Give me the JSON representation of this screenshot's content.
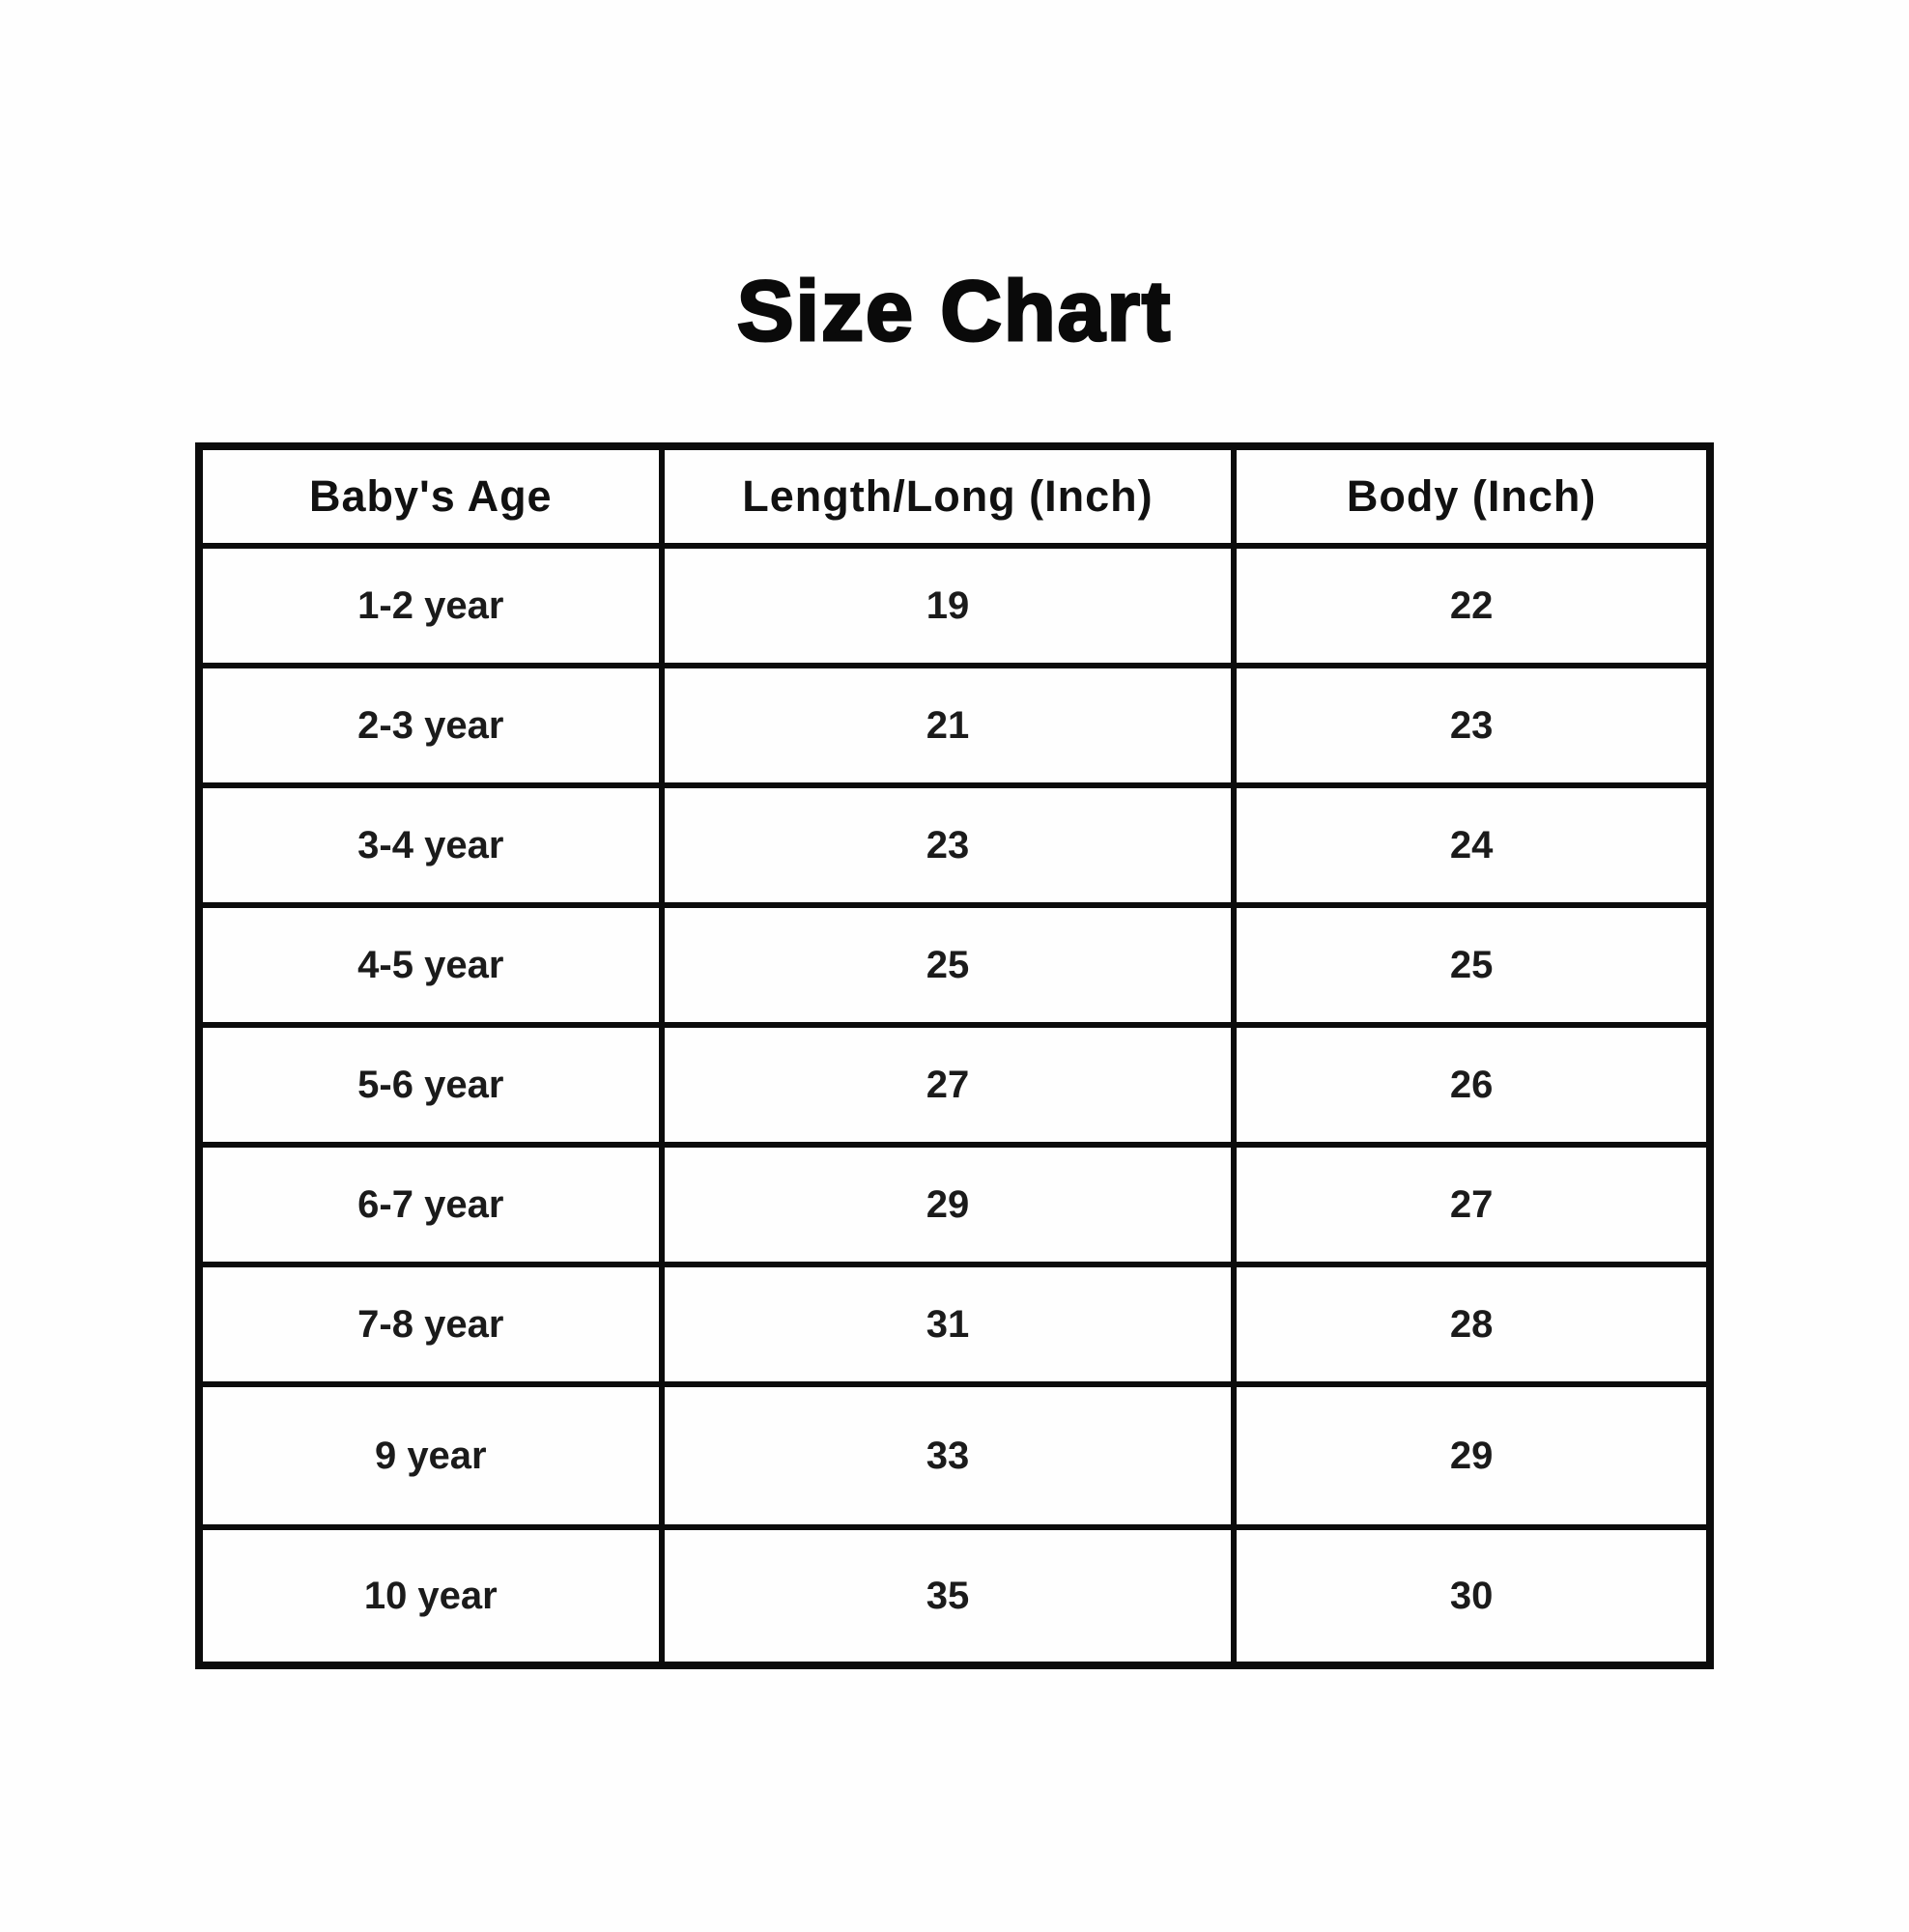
{
  "title": "Size Chart",
  "colors": {
    "background": "#ffffff",
    "text": "#1b1b1b",
    "border": "#0c0c0c"
  },
  "chart_data": {
    "type": "table",
    "title": "Size Chart",
    "columns": [
      "Baby's Age",
      "Length/Long (Inch)",
      "Body (Inch)"
    ],
    "rows": [
      [
        "1-2 year",
        19,
        22
      ],
      [
        "2-3 year",
        21,
        23
      ],
      [
        "3-4 year",
        23,
        24
      ],
      [
        "4-5 year",
        25,
        25
      ],
      [
        "5-6 year",
        27,
        26
      ],
      [
        "6-7 year",
        29,
        27
      ],
      [
        "7-8 year",
        31,
        28
      ],
      [
        "9 year",
        33,
        29
      ],
      [
        "10 year",
        35,
        30
      ]
    ]
  }
}
